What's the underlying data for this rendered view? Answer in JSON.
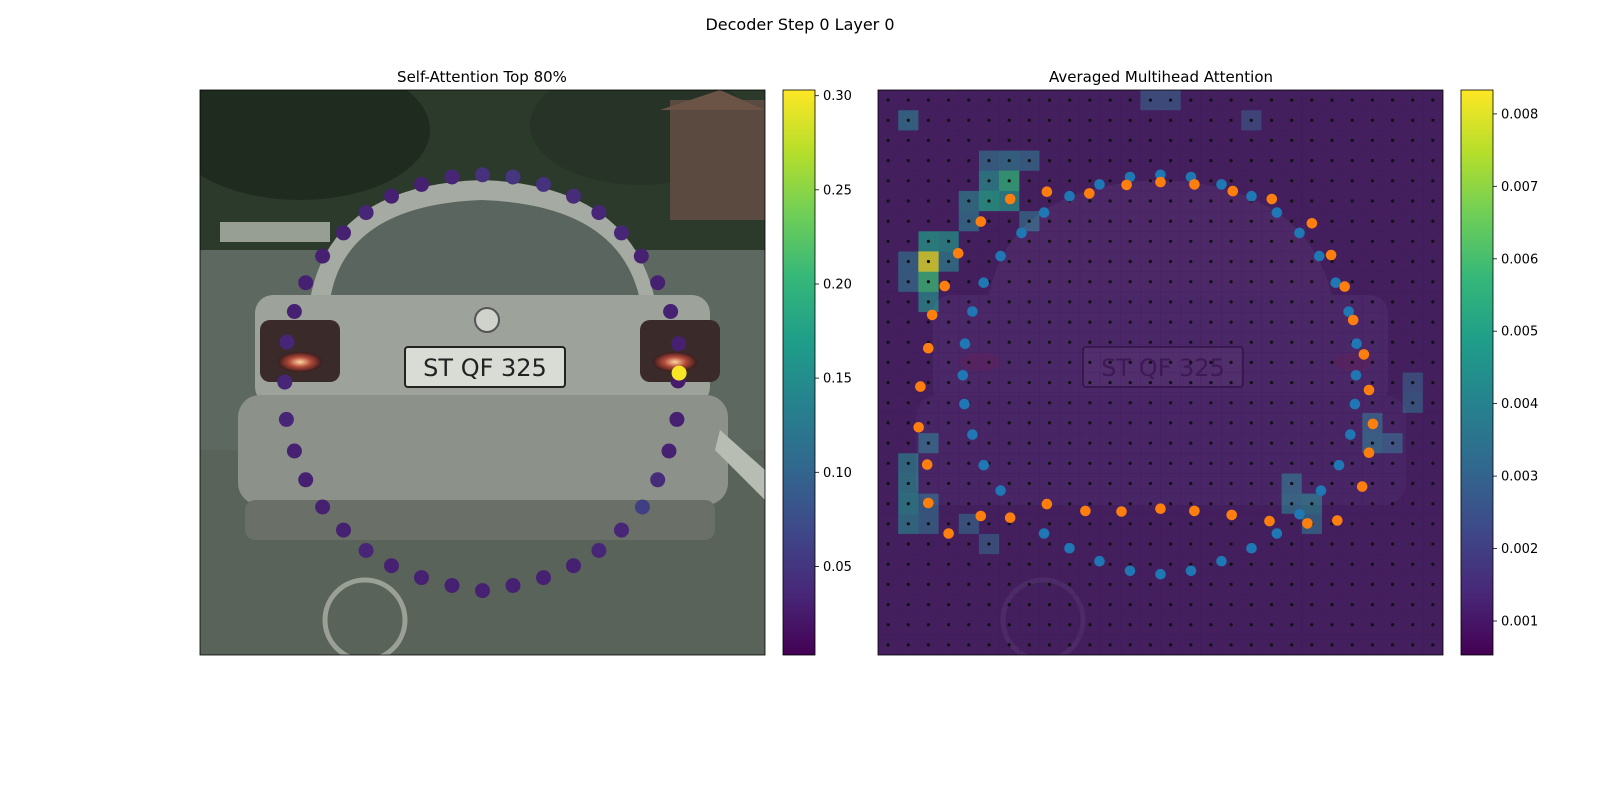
{
  "figure": {
    "suptitle": "Decoder Step 0 Layer 0"
  },
  "colors": {
    "viridis": [
      "#440154",
      "#482878",
      "#3e4989",
      "#31688e",
      "#26828e",
      "#1f9e89",
      "#35b779",
      "#6ece58",
      "#b5de2b",
      "#fde725"
    ],
    "series_a": "#1f77b4",
    "series_b": "#ff7f0e",
    "grid_dot": "#111111"
  },
  "chart_data": [
    {
      "type": "scatter",
      "title": "Self-Attention Top 80%",
      "background": "photo of the rear of a silver hatchback car on a street",
      "xlim": [
        0,
        1
      ],
      "ylim": [
        0,
        1
      ],
      "colorbar": {
        "range": [
          0.003,
          0.303
        ],
        "ticks": [
          "0.05",
          "0.10",
          "0.15",
          "0.20",
          "0.25",
          "0.30"
        ],
        "tick_values": [
          0.05,
          0.1,
          0.15,
          0.2,
          0.25,
          0.3
        ],
        "colormap": "viridis"
      },
      "points": [
        {
          "x": 0.5,
          "y": 0.15,
          "v": 0.045
        },
        {
          "x": 0.554,
          "y": 0.154,
          "v": 0.05
        },
        {
          "x": 0.608,
          "y": 0.167,
          "v": 0.045
        },
        {
          "x": 0.661,
          "y": 0.188,
          "v": 0.04
        },
        {
          "x": 0.706,
          "y": 0.217,
          "v": 0.035
        },
        {
          "x": 0.746,
          "y": 0.253,
          "v": 0.035
        },
        {
          "x": 0.781,
          "y": 0.294,
          "v": 0.03
        },
        {
          "x": 0.81,
          "y": 0.341,
          "v": 0.03
        },
        {
          "x": 0.833,
          "y": 0.392,
          "v": 0.03
        },
        {
          "x": 0.847,
          "y": 0.449,
          "v": 0.03
        },
        {
          "x": 0.846,
          "y": 0.515,
          "v": 0.025
        },
        {
          "x": 0.848,
          "y": 0.501,
          "v": 0.3
        },
        {
          "x": 0.844,
          "y": 0.583,
          "v": 0.03
        },
        {
          "x": 0.83,
          "y": 0.639,
          "v": 0.03
        },
        {
          "x": 0.81,
          "y": 0.69,
          "v": 0.04
        },
        {
          "x": 0.783,
          "y": 0.738,
          "v": 0.06
        },
        {
          "x": 0.746,
          "y": 0.779,
          "v": 0.035
        },
        {
          "x": 0.706,
          "y": 0.815,
          "v": 0.035
        },
        {
          "x": 0.661,
          "y": 0.842,
          "v": 0.03
        },
        {
          "x": 0.608,
          "y": 0.863,
          "v": 0.03
        },
        {
          "x": 0.554,
          "y": 0.877,
          "v": 0.03
        },
        {
          "x": 0.5,
          "y": 0.886,
          "v": 0.03
        },
        {
          "x": 0.446,
          "y": 0.877,
          "v": 0.03
        },
        {
          "x": 0.392,
          "y": 0.863,
          "v": 0.03
        },
        {
          "x": 0.339,
          "y": 0.842,
          "v": 0.03
        },
        {
          "x": 0.294,
          "y": 0.815,
          "v": 0.035
        },
        {
          "x": 0.254,
          "y": 0.779,
          "v": 0.03
        },
        {
          "x": 0.217,
          "y": 0.738,
          "v": 0.03
        },
        {
          "x": 0.187,
          "y": 0.69,
          "v": 0.03
        },
        {
          "x": 0.167,
          "y": 0.639,
          "v": 0.03
        },
        {
          "x": 0.153,
          "y": 0.583,
          "v": 0.035
        },
        {
          "x": 0.15,
          "y": 0.517,
          "v": 0.035
        },
        {
          "x": 0.154,
          "y": 0.446,
          "v": 0.035
        },
        {
          "x": 0.167,
          "y": 0.392,
          "v": 0.03
        },
        {
          "x": 0.187,
          "y": 0.341,
          "v": 0.03
        },
        {
          "x": 0.217,
          "y": 0.294,
          "v": 0.03
        },
        {
          "x": 0.254,
          "y": 0.253,
          "v": 0.03
        },
        {
          "x": 0.294,
          "y": 0.217,
          "v": 0.035
        },
        {
          "x": 0.339,
          "y": 0.188,
          "v": 0.03
        },
        {
          "x": 0.392,
          "y": 0.167,
          "v": 0.03
        },
        {
          "x": 0.446,
          "y": 0.154,
          "v": 0.035
        }
      ]
    },
    {
      "type": "heatmap",
      "title": "Averaged Multihead Attention",
      "background": "same car photo, darkened under the attention heatmap",
      "xlim": [
        0,
        1
      ],
      "ylim": [
        0,
        1
      ],
      "grid": {
        "cols": 28,
        "rows": 28
      },
      "colorbar": {
        "range": [
          0.00053,
          0.00833
        ],
        "ticks": [
          "0.001",
          "0.002",
          "0.003",
          "0.004",
          "0.005",
          "0.006",
          "0.007",
          "0.008"
        ],
        "tick_values": [
          0.001,
          0.002,
          0.003,
          0.004,
          0.005,
          0.006,
          0.007,
          0.008
        ],
        "colormap": "viridis"
      },
      "base_value": 0.0009,
      "cells": [
        {
          "c": 1,
          "r": 1,
          "v": 0.0032
        },
        {
          "c": 2,
          "r": 7,
          "v": 0.0045
        },
        {
          "c": 2,
          "r": 8,
          "v": 0.0082
        },
        {
          "c": 2,
          "r": 9,
          "v": 0.0058
        },
        {
          "c": 2,
          "r": 10,
          "v": 0.004
        },
        {
          "c": 1,
          "r": 8,
          "v": 0.003
        },
        {
          "c": 1,
          "r": 9,
          "v": 0.003
        },
        {
          "c": 3,
          "r": 7,
          "v": 0.0042
        },
        {
          "c": 3,
          "r": 8,
          "v": 0.0035
        },
        {
          "c": 5,
          "r": 4,
          "v": 0.004
        },
        {
          "c": 5,
          "r": 5,
          "v": 0.0048
        },
        {
          "c": 6,
          "r": 4,
          "v": 0.0055
        },
        {
          "c": 6,
          "r": 5,
          "v": 0.0042
        },
        {
          "c": 4,
          "r": 5,
          "v": 0.0034
        },
        {
          "c": 4,
          "r": 6,
          "v": 0.0032
        },
        {
          "c": 5,
          "r": 3,
          "v": 0.003
        },
        {
          "c": 6,
          "r": 3,
          "v": 0.0032
        },
        {
          "c": 7,
          "r": 3,
          "v": 0.003
        },
        {
          "c": 7,
          "r": 6,
          "v": 0.003
        },
        {
          "c": 1,
          "r": 18,
          "v": 0.0034
        },
        {
          "c": 1,
          "r": 19,
          "v": 0.0036
        },
        {
          "c": 1,
          "r": 20,
          "v": 0.0038
        },
        {
          "c": 1,
          "r": 21,
          "v": 0.0034
        },
        {
          "c": 2,
          "r": 17,
          "v": 0.003
        },
        {
          "c": 2,
          "r": 20,
          "v": 0.0028
        },
        {
          "c": 2,
          "r": 21,
          "v": 0.0028
        },
        {
          "c": 4,
          "r": 21,
          "v": 0.0026
        },
        {
          "c": 5,
          "r": 22,
          "v": 0.0025
        },
        {
          "c": 20,
          "r": 19,
          "v": 0.003
        },
        {
          "c": 20,
          "r": 20,
          "v": 0.0032
        },
        {
          "c": 21,
          "r": 20,
          "v": 0.0034
        },
        {
          "c": 21,
          "r": 21,
          "v": 0.003
        },
        {
          "c": 24,
          "r": 16,
          "v": 0.0028
        },
        {
          "c": 24,
          "r": 17,
          "v": 0.003
        },
        {
          "c": 25,
          "r": 17,
          "v": 0.0026
        },
        {
          "c": 26,
          "r": 15,
          "v": 0.0026
        },
        {
          "c": 26,
          "r": 14,
          "v": 0.0024
        },
        {
          "c": 13,
          "r": 0,
          "v": 0.0024
        },
        {
          "c": 14,
          "r": 0,
          "v": 0.0024
        },
        {
          "c": 18,
          "r": 1,
          "v": 0.0022
        }
      ],
      "series": [
        {
          "name": "",
          "color_key": "series_a",
          "points": [
            {
              "x": 0.5,
              "y": 0.15
            },
            {
              "x": 0.554,
              "y": 0.154
            },
            {
              "x": 0.608,
              "y": 0.167
            },
            {
              "x": 0.661,
              "y": 0.188
            },
            {
              "x": 0.706,
              "y": 0.217
            },
            {
              "x": 0.746,
              "y": 0.253
            },
            {
              "x": 0.781,
              "y": 0.294
            },
            {
              "x": 0.81,
              "y": 0.341
            },
            {
              "x": 0.833,
              "y": 0.392
            },
            {
              "x": 0.847,
              "y": 0.449
            },
            {
              "x": 0.846,
              "y": 0.505
            },
            {
              "x": 0.844,
              "y": 0.556
            },
            {
              "x": 0.836,
              "y": 0.61
            },
            {
              "x": 0.816,
              "y": 0.664
            },
            {
              "x": 0.784,
              "y": 0.709
            },
            {
              "x": 0.746,
              "y": 0.751
            },
            {
              "x": 0.706,
              "y": 0.785
            },
            {
              "x": 0.661,
              "y": 0.811
            },
            {
              "x": 0.608,
              "y": 0.834
            },
            {
              "x": 0.554,
              "y": 0.851
            },
            {
              "x": 0.5,
              "y": 0.857
            },
            {
              "x": 0.446,
              "y": 0.851
            },
            {
              "x": 0.392,
              "y": 0.834
            },
            {
              "x": 0.339,
              "y": 0.811
            },
            {
              "x": 0.294,
              "y": 0.785
            },
            {
              "x": 0.217,
              "y": 0.709
            },
            {
              "x": 0.187,
              "y": 0.664
            },
            {
              "x": 0.167,
              "y": 0.61
            },
            {
              "x": 0.153,
              "y": 0.556
            },
            {
              "x": 0.15,
              "y": 0.505
            },
            {
              "x": 0.154,
              "y": 0.449
            },
            {
              "x": 0.167,
              "y": 0.392
            },
            {
              "x": 0.187,
              "y": 0.341
            },
            {
              "x": 0.217,
              "y": 0.294
            },
            {
              "x": 0.254,
              "y": 0.253
            },
            {
              "x": 0.294,
              "y": 0.217
            },
            {
              "x": 0.339,
              "y": 0.188
            },
            {
              "x": 0.392,
              "y": 0.167
            },
            {
              "x": 0.446,
              "y": 0.154
            }
          ]
        },
        {
          "name": "",
          "color_key": "series_b",
          "points": [
            {
              "x": 0.5,
              "y": 0.163
            },
            {
              "x": 0.56,
              "y": 0.167
            },
            {
              "x": 0.628,
              "y": 0.179
            },
            {
              "x": 0.697,
              "y": 0.193
            },
            {
              "x": 0.768,
              "y": 0.236
            },
            {
              "x": 0.802,
              "y": 0.292
            },
            {
              "x": 0.826,
              "y": 0.348
            },
            {
              "x": 0.841,
              "y": 0.407
            },
            {
              "x": 0.86,
              "y": 0.468
            },
            {
              "x": 0.869,
              "y": 0.531
            },
            {
              "x": 0.876,
              "y": 0.591
            },
            {
              "x": 0.869,
              "y": 0.642
            },
            {
              "x": 0.857,
              "y": 0.702
            },
            {
              "x": 0.813,
              "y": 0.762
            },
            {
              "x": 0.76,
              "y": 0.767
            },
            {
              "x": 0.693,
              "y": 0.763
            },
            {
              "x": 0.626,
              "y": 0.752
            },
            {
              "x": 0.56,
              "y": 0.745
            },
            {
              "x": 0.5,
              "y": 0.741
            },
            {
              "x": 0.431,
              "y": 0.746
            },
            {
              "x": 0.367,
              "y": 0.745
            },
            {
              "x": 0.299,
              "y": 0.733
            },
            {
              "x": 0.234,
              "y": 0.757
            },
            {
              "x": 0.182,
              "y": 0.754
            },
            {
              "x": 0.125,
              "y": 0.785
            },
            {
              "x": 0.089,
              "y": 0.731
            },
            {
              "x": 0.087,
              "y": 0.663
            },
            {
              "x": 0.072,
              "y": 0.597
            },
            {
              "x": 0.075,
              "y": 0.525
            },
            {
              "x": 0.089,
              "y": 0.457
            },
            {
              "x": 0.096,
              "y": 0.398
            },
            {
              "x": 0.118,
              "y": 0.347
            },
            {
              "x": 0.142,
              "y": 0.289
            },
            {
              "x": 0.182,
              "y": 0.233
            },
            {
              "x": 0.234,
              "y": 0.193
            },
            {
              "x": 0.299,
              "y": 0.18
            },
            {
              "x": 0.374,
              "y": 0.183
            },
            {
              "x": 0.44,
              "y": 0.168
            }
          ]
        }
      ]
    }
  ]
}
